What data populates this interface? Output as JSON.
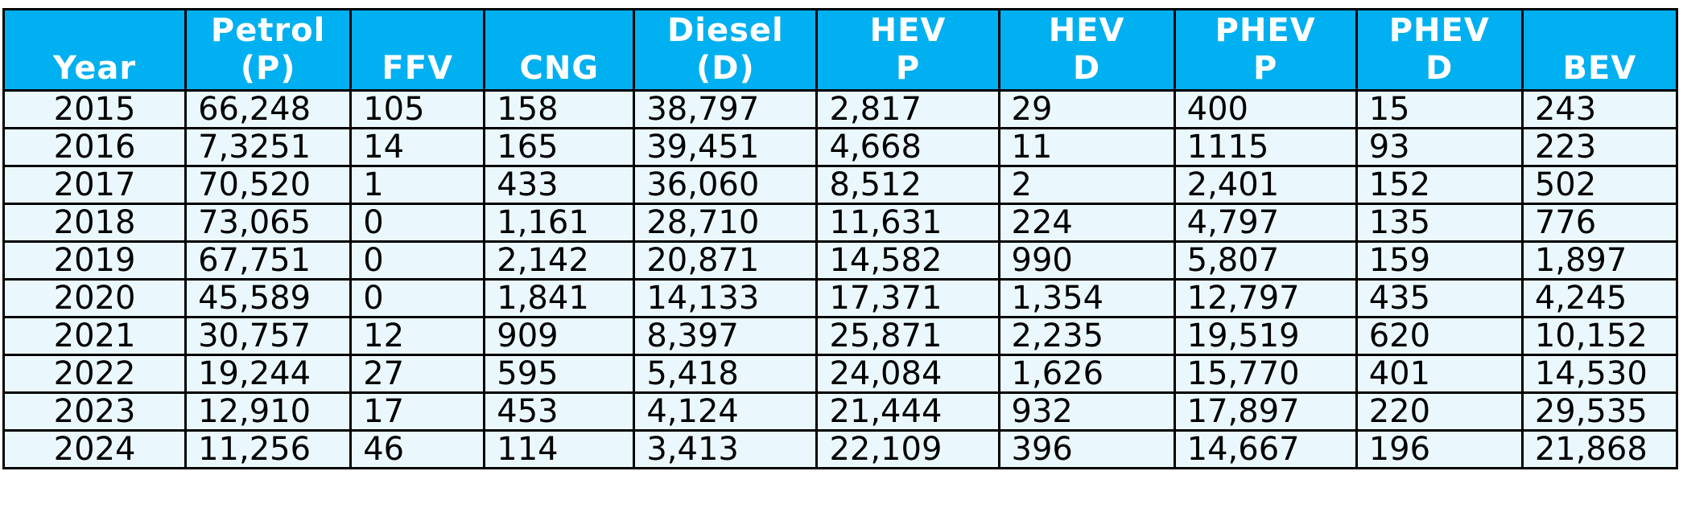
{
  "table": {
    "headers": [
      "Year",
      "Petrol\n(P)",
      "FFV",
      "CNG",
      "Diesel\n(D)",
      "HEV\nP",
      "HEV\nD",
      "PHEV\nP",
      "PHEV\nD",
      "BEV"
    ],
    "rows": [
      [
        "2015",
        "66,248",
        "105",
        "158",
        "38,797",
        "2,817",
        "29",
        "400",
        "15",
        "243"
      ],
      [
        "2016",
        "7,3251",
        "14",
        "165",
        "39,451",
        "4,668",
        "11",
        "1115",
        "93",
        "223"
      ],
      [
        "2017",
        "70,520",
        "1",
        "433",
        "36,060",
        "8,512",
        "2",
        "2,401",
        "152",
        "502"
      ],
      [
        "2018",
        "73,065",
        "0",
        "1,161",
        "28,710",
        "11,631",
        "224",
        "4,797",
        "135",
        "776"
      ],
      [
        "2019",
        "67,751",
        "0",
        "2,142",
        "20,871",
        "14,582",
        "990",
        "5,807",
        "159",
        "1,897"
      ],
      [
        "2020",
        "45,589",
        "0",
        "1,841",
        "14,133",
        "17,371",
        "1,354",
        "12,797",
        "435",
        "4,245"
      ],
      [
        "2021",
        "30,757",
        "12",
        "909",
        "8,397",
        "25,871",
        "2,235",
        "19,519",
        "620",
        "10,152"
      ],
      [
        "2022",
        "19,244",
        "27",
        "595",
        "5,418",
        "24,084",
        "1,626",
        "15,770",
        "401",
        "14,530"
      ],
      [
        "2023",
        "12,910",
        "17",
        "453",
        "4,124",
        "21,444",
        "932",
        "17,897",
        "220",
        "29,535"
      ],
      [
        "2024",
        "11,256",
        "46",
        "114",
        "3,413",
        "22,109",
        "396",
        "14,667",
        "196",
        "21,868"
      ]
    ]
  },
  "colors": {
    "header_bg": "#00b0f0",
    "header_text": "#ffffff",
    "cell_bg": "#eaf8fd",
    "border": "#000000"
  }
}
